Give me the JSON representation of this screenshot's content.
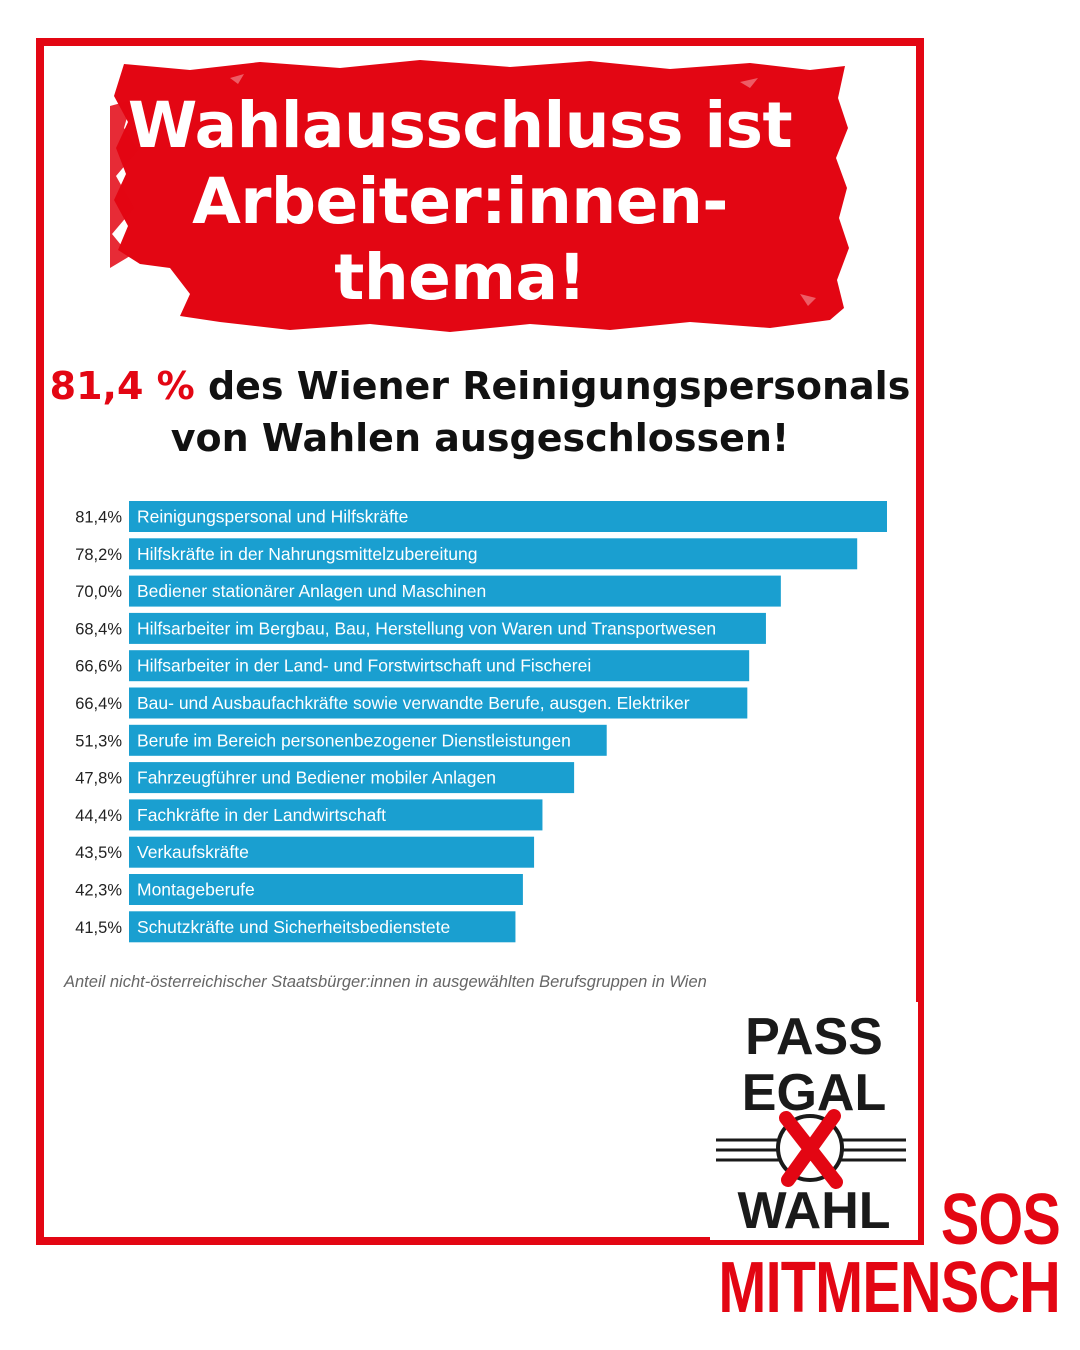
{
  "headline": {
    "line1": "Wahlausschluss ist",
    "line2": "Arbeiter:innen-",
    "line3": "thema!"
  },
  "subtitle": {
    "highlight": "81,4 %",
    "rest_line1": " des Wiener Reinigungspersonals",
    "line2": "von Wahlen ausgeschlossen!"
  },
  "chart_data": {
    "type": "bar",
    "orientation": "horizontal",
    "categories": [
      "Reinigungspersonal und Hilfskräfte",
      "Hilfskräfte in der Nahrungsmittelzubereitung",
      "Bediener stationärer Anlagen und Maschinen",
      "Hilfsarbeiter im Bergbau, Bau, Herstellung von Waren und Transportwesen",
      "Hilfsarbeiter in der Land- und Forstwirtschaft und Fischerei",
      "Bau- und Ausbaufachkräfte sowie verwandte Berufe, ausgen. Elektriker",
      "Berufe im Bereich personenbezogener Dienstleistungen",
      "Fahrzeugführer und Bediener mobiler Anlagen",
      "Fachkräfte in der Landwirtschaft",
      "Verkaufskräfte",
      "Montageberufe",
      "Schutzkräfte und Sicherheitsbedienstete"
    ],
    "values": [
      81.4,
      78.2,
      70.0,
      68.4,
      66.6,
      66.4,
      51.3,
      47.8,
      44.4,
      43.5,
      42.3,
      41.5
    ],
    "value_labels": [
      "81,4%",
      "78,2%",
      "70,0%",
      "68,4%",
      "66,6%",
      "66,4%",
      "51,3%",
      "47,8%",
      "44,4%",
      "43,5%",
      "42,3%",
      "41,5%"
    ],
    "caption": "Anteil nicht-österreichischer Staatsbürger:innen in ausgewählten Berufsgruppen in Wien",
    "bar_color": "#1a9fd0",
    "grid": false,
    "legend": "none"
  },
  "logos": {
    "pass_egal_wahl": {
      "line1": "PASS",
      "line2": "EGAL",
      "line3": "WAHL"
    },
    "sos_mitmensch": {
      "line1": "SOS",
      "line2": "MITMENSCH"
    }
  },
  "colors": {
    "accent": "#e30613",
    "bar": "#1a9fd0",
    "text": "#111111"
  }
}
